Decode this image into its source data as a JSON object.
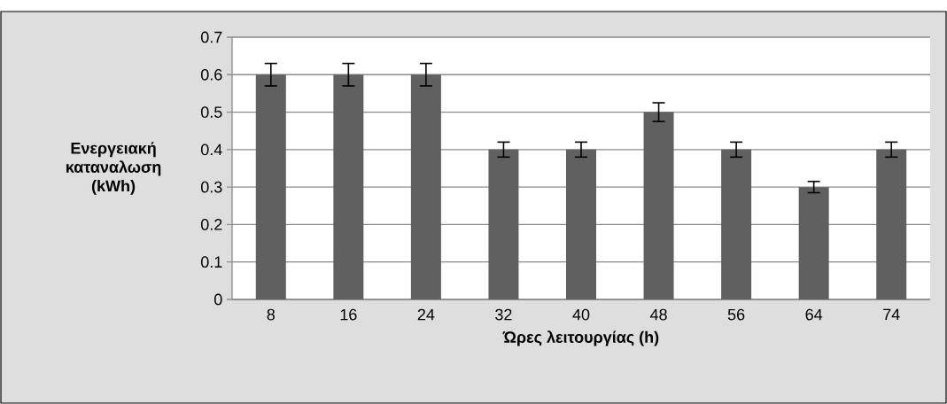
{
  "chart_data": {
    "type": "bar",
    "xlabel": "Ώρες λειτουργίας (h)",
    "ylabel": "Ενεργειακή καταναλωση (kWh)",
    "categories": [
      "8",
      "16",
      "24",
      "32",
      "40",
      "48",
      "56",
      "64",
      "74"
    ],
    "values": [
      0.6,
      0.6,
      0.6,
      0.4,
      0.4,
      0.5,
      0.4,
      0.3,
      0.4
    ],
    "errors": [
      0.03,
      0.03,
      0.03,
      0.02,
      0.02,
      0.025,
      0.02,
      0.015,
      0.02
    ],
    "color": "#606060",
    "ylim": [
      0,
      0.7
    ],
    "yticks": [
      0,
      0.1,
      0.2,
      0.3,
      0.4,
      0.5,
      0.6,
      0.7
    ],
    "grid": "y"
  }
}
